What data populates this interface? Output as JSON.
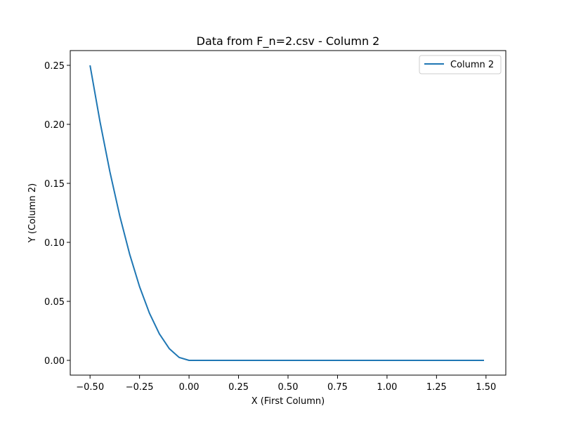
{
  "chart_data": {
    "type": "line",
    "title": "Data from F_n=2.csv - Column 2",
    "xlabel": "X (First Column)",
    "ylabel": "Y (Column 2)",
    "xlim": [
      -0.6,
      1.6
    ],
    "ylim": [
      -0.0125,
      0.2625
    ],
    "x_ticks": [
      -0.5,
      -0.25,
      0.0,
      0.25,
      0.5,
      0.75,
      1.0,
      1.25,
      1.5
    ],
    "x_tick_labels": [
      "−0.50",
      "−0.25",
      "0.00",
      "0.25",
      "0.50",
      "0.75",
      "1.00",
      "1.25",
      "1.50"
    ],
    "y_ticks": [
      0.0,
      0.05,
      0.1,
      0.15,
      0.2,
      0.25
    ],
    "y_tick_labels": [
      "0.00",
      "0.05",
      "0.10",
      "0.15",
      "0.20",
      "0.25"
    ],
    "grid": false,
    "legend_position": "top-right",
    "series": [
      {
        "name": "Column 2",
        "color": "#1f77b4",
        "x": [
          -0.5,
          -0.45,
          -0.4,
          -0.35,
          -0.3,
          -0.25,
          -0.2,
          -0.15,
          -0.1,
          -0.05,
          0.0,
          0.25,
          0.5,
          0.75,
          1.0,
          1.25,
          1.49
        ],
        "y": [
          0.25,
          0.2025,
          0.16,
          0.1225,
          0.09,
          0.0625,
          0.04,
          0.0225,
          0.01,
          0.0025,
          0.0,
          0.0,
          0.0,
          0.0,
          0.0,
          0.0,
          0.0
        ]
      }
    ]
  }
}
